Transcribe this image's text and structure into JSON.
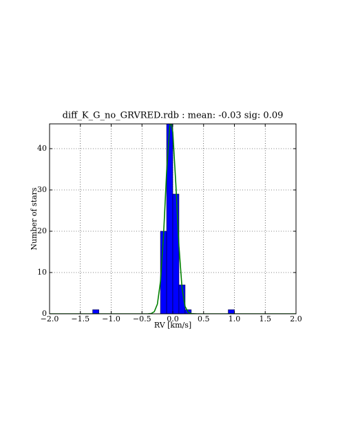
{
  "chart_data": {
    "type": "histogram",
    "title": "diff_K_G_no_GRVRED.rdb  : mean: -0.03  sig: 0.09",
    "xlabel": "RV [km/s]",
    "ylabel": "Number of stars",
    "bins": [
      -1.3,
      -1.2,
      -1.1,
      -1.0,
      -0.9,
      -0.8,
      -0.7,
      -0.6,
      -0.5,
      -0.4,
      -0.3,
      -0.2,
      -0.1,
      0.0,
      0.1,
      0.2,
      0.3,
      0.4,
      0.5,
      0.6,
      0.7,
      0.8,
      0.9,
      1.0
    ],
    "counts": [
      1,
      0,
      0,
      0,
      0,
      0,
      0,
      0,
      0,
      0,
      0,
      20,
      46,
      29,
      7,
      1,
      0,
      0,
      0,
      0,
      0,
      0,
      1
    ],
    "color": "#0000ff",
    "fit": {
      "color": "#008000",
      "x": [
        -2.0,
        -0.5,
        -0.4,
        -0.35,
        -0.3,
        -0.25,
        -0.2,
        -0.15,
        -0.1,
        -0.05,
        -0.03,
        0.0,
        0.05,
        0.1,
        0.15,
        0.2,
        0.25,
        0.3,
        0.4,
        2.0
      ],
      "y": [
        0,
        0.0,
        0.01,
        0.08,
        0.52,
        2.34,
        7.81,
        19.1,
        34.4,
        45.4,
        46.5,
        44.0,
        31.3,
        16.4,
        6.29,
        1.78,
        0.37,
        0.06,
        0.0,
        0
      ]
    },
    "xlim": [
      -2.0,
      2.0
    ],
    "ylim": [
      0,
      46
    ],
    "xticks": [
      {
        "value": -2.0,
        "label": "−2.0"
      },
      {
        "value": -1.5,
        "label": "−1.5"
      },
      {
        "value": -1.0,
        "label": "−1.0"
      },
      {
        "value": -0.5,
        "label": "−0.5"
      },
      {
        "value": 0.0,
        "label": "0.0"
      },
      {
        "value": 0.5,
        "label": "0.5"
      },
      {
        "value": 1.0,
        "label": "1.0"
      },
      {
        "value": 1.5,
        "label": "1.5"
      },
      {
        "value": 2.0,
        "label": "2.0"
      }
    ],
    "yticks": [
      0,
      10,
      20,
      30,
      40
    ],
    "grid": true
  }
}
